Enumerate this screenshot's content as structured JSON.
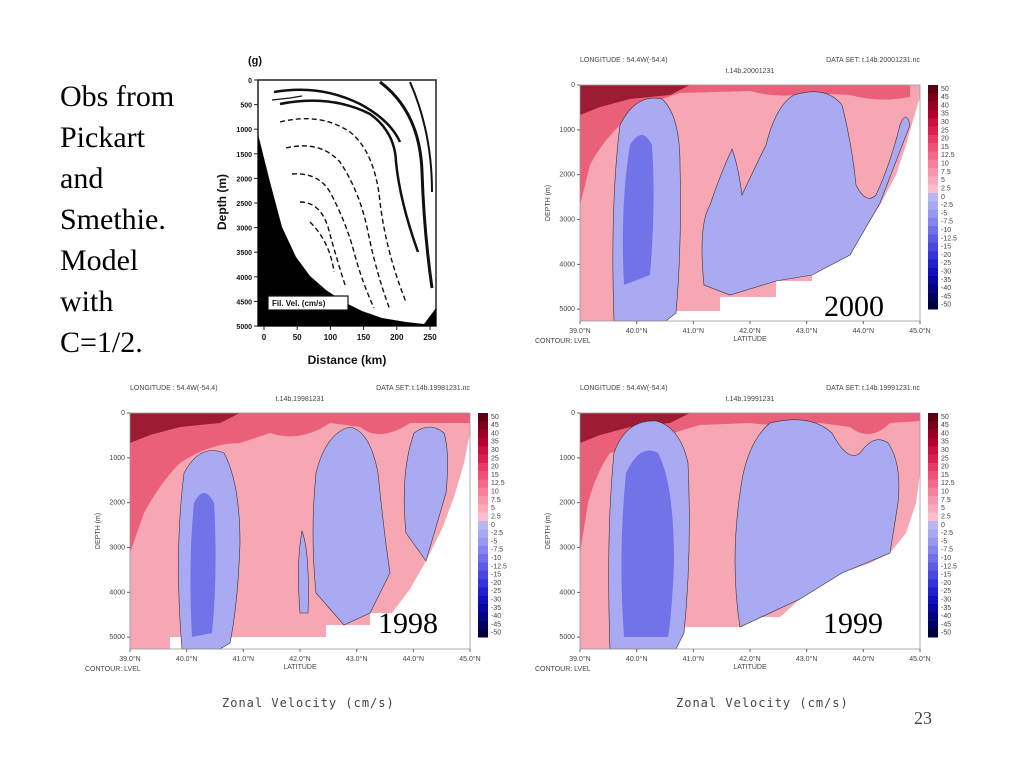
{
  "slide": {
    "side_text": "Obs from\nPickart\nand\nSmethie.\nModel\nwith\nC=1/2.",
    "page_number": "23",
    "zonal_label_left": "Zonal Velocity (cm/s)",
    "zonal_label_right": "Zonal Velocity (cm/s)"
  },
  "obs_panel": {
    "panel_letter": "(g)",
    "ylabel": "Depth (m)",
    "xlabel": "Distance (km)",
    "legend_box": "Fil. Vel. (cm/s)",
    "y_ticks": [
      "0",
      "500",
      "1000",
      "1500",
      "2000",
      "2500",
      "3000",
      "3500",
      "4000",
      "4500",
      "5000"
    ],
    "x_ticks": [
      "0",
      "50",
      "100",
      "150",
      "200",
      "250"
    ]
  },
  "model_panels": [
    {
      "key": "2000",
      "year_label": "2000",
      "header_left": "LONGITUDE : 54.4W(-54.4)",
      "header_right": "DATA SET: t.14b.20001231.nc",
      "subtitle": "t.14b.20001231",
      "ylabel": "DEPTH (m)",
      "xlabel": "LATITUDE",
      "footer": "CONTOUR: LVEL",
      "y_ticks": [
        "0",
        "1000",
        "2000",
        "3000",
        "4000",
        "5000"
      ],
      "x_ticks": [
        "39.0°N",
        "40.0°N",
        "41.0°N",
        "42.0°N",
        "43.0°N",
        "44.0°N",
        "45.0°N"
      ]
    },
    {
      "key": "1998",
      "year_label": "1998",
      "header_left": "LONGITUDE : 54.4W(-54.4)",
      "header_right": "DATA SET: t.14b.19981231.nc",
      "subtitle": "t.14b.19981231",
      "ylabel": "DEPTH (m)",
      "xlabel": "LATITUDE",
      "footer": "CONTOUR: LVEL",
      "y_ticks": [
        "0",
        "1000",
        "2000",
        "3000",
        "4000",
        "5000"
      ],
      "x_ticks": [
        "39.0°N",
        "40.0°N",
        "41.0°N",
        "42.0°N",
        "43.0°N",
        "44.0°N",
        "45.0°N"
      ]
    },
    {
      "key": "1999",
      "year_label": "1999",
      "header_left": "LONGITUDE : 54.4W(-54.4)",
      "header_right": "DATA SET: t.14b.19991231.nc",
      "subtitle": "t.14b.19991231",
      "ylabel": "DEPTH (m)",
      "xlabel": "LATITUDE",
      "footer": "CONTOUR: LVEL",
      "y_ticks": [
        "0",
        "1000",
        "2000",
        "3000",
        "4000",
        "5000"
      ],
      "x_ticks": [
        "39.0°N",
        "40.0°N",
        "41.0°N",
        "42.0°N",
        "43.0°N",
        "44.0°N",
        "45.0°N"
      ]
    }
  ],
  "colorbar": {
    "levels": [
      "50",
      "45",
      "40",
      "35",
      "30",
      "25",
      "20",
      "15",
      "12.5",
      "10",
      "7.5",
      "5",
      "2.5",
      "0",
      "-2.5",
      "-5",
      "-7.5",
      "-10",
      "-12.5",
      "-15",
      "-20",
      "-25",
      "-30",
      "-35",
      "-40",
      "-45",
      "-50"
    ],
    "colors": [
      "#5a0010",
      "#7a0018",
      "#9a0022",
      "#b8002e",
      "#cc1040",
      "#dd2050",
      "#e83a64",
      "#f05078",
      "#f4688a",
      "#f7809c",
      "#f996ad",
      "#fbaabc",
      "#fdbdca",
      "#b8b8f4",
      "#a8a8f2",
      "#9898f0",
      "#8484ec",
      "#7070e8",
      "#5c5ce4",
      "#4848e0",
      "#3434dc",
      "#2020d0",
      "#1010bc",
      "#0808a0",
      "#040480",
      "#020260",
      "#000040"
    ]
  },
  "chart_data": [
    {
      "type": "heatmap",
      "title": "",
      "xlabel": "Distance (km)",
      "ylabel": "Depth (m)",
      "xlim": [
        0,
        260
      ],
      "ylim": [
        5000,
        0
      ],
      "legend": "Fil. Vel. (cm/s)",
      "note": "observational section, dashed contours of velocity; bathymetry shaded black"
    },
    {
      "type": "heatmap",
      "title": "t.14b.20001231",
      "xlabel": "LATITUDE",
      "ylabel": "DEPTH (m)",
      "xlim": [
        39.0,
        45.0
      ],
      "ylim": [
        5300,
        0
      ],
      "colorbar_range": [
        -50,
        50
      ]
    },
    {
      "type": "heatmap",
      "title": "t.14b.19981231",
      "xlabel": "LATITUDE",
      "ylabel": "DEPTH (m)",
      "xlim": [
        39.0,
        45.0
      ],
      "ylim": [
        5300,
        0
      ],
      "colorbar_range": [
        -50,
        50
      ]
    },
    {
      "type": "heatmap",
      "title": "t.14b.19991231",
      "xlabel": "LATITUDE",
      "ylabel": "DEPTH (m)",
      "xlim": [
        39.0,
        45.0
      ],
      "ylim": [
        5300,
        0
      ],
      "colorbar_range": [
        -50,
        50
      ]
    }
  ]
}
